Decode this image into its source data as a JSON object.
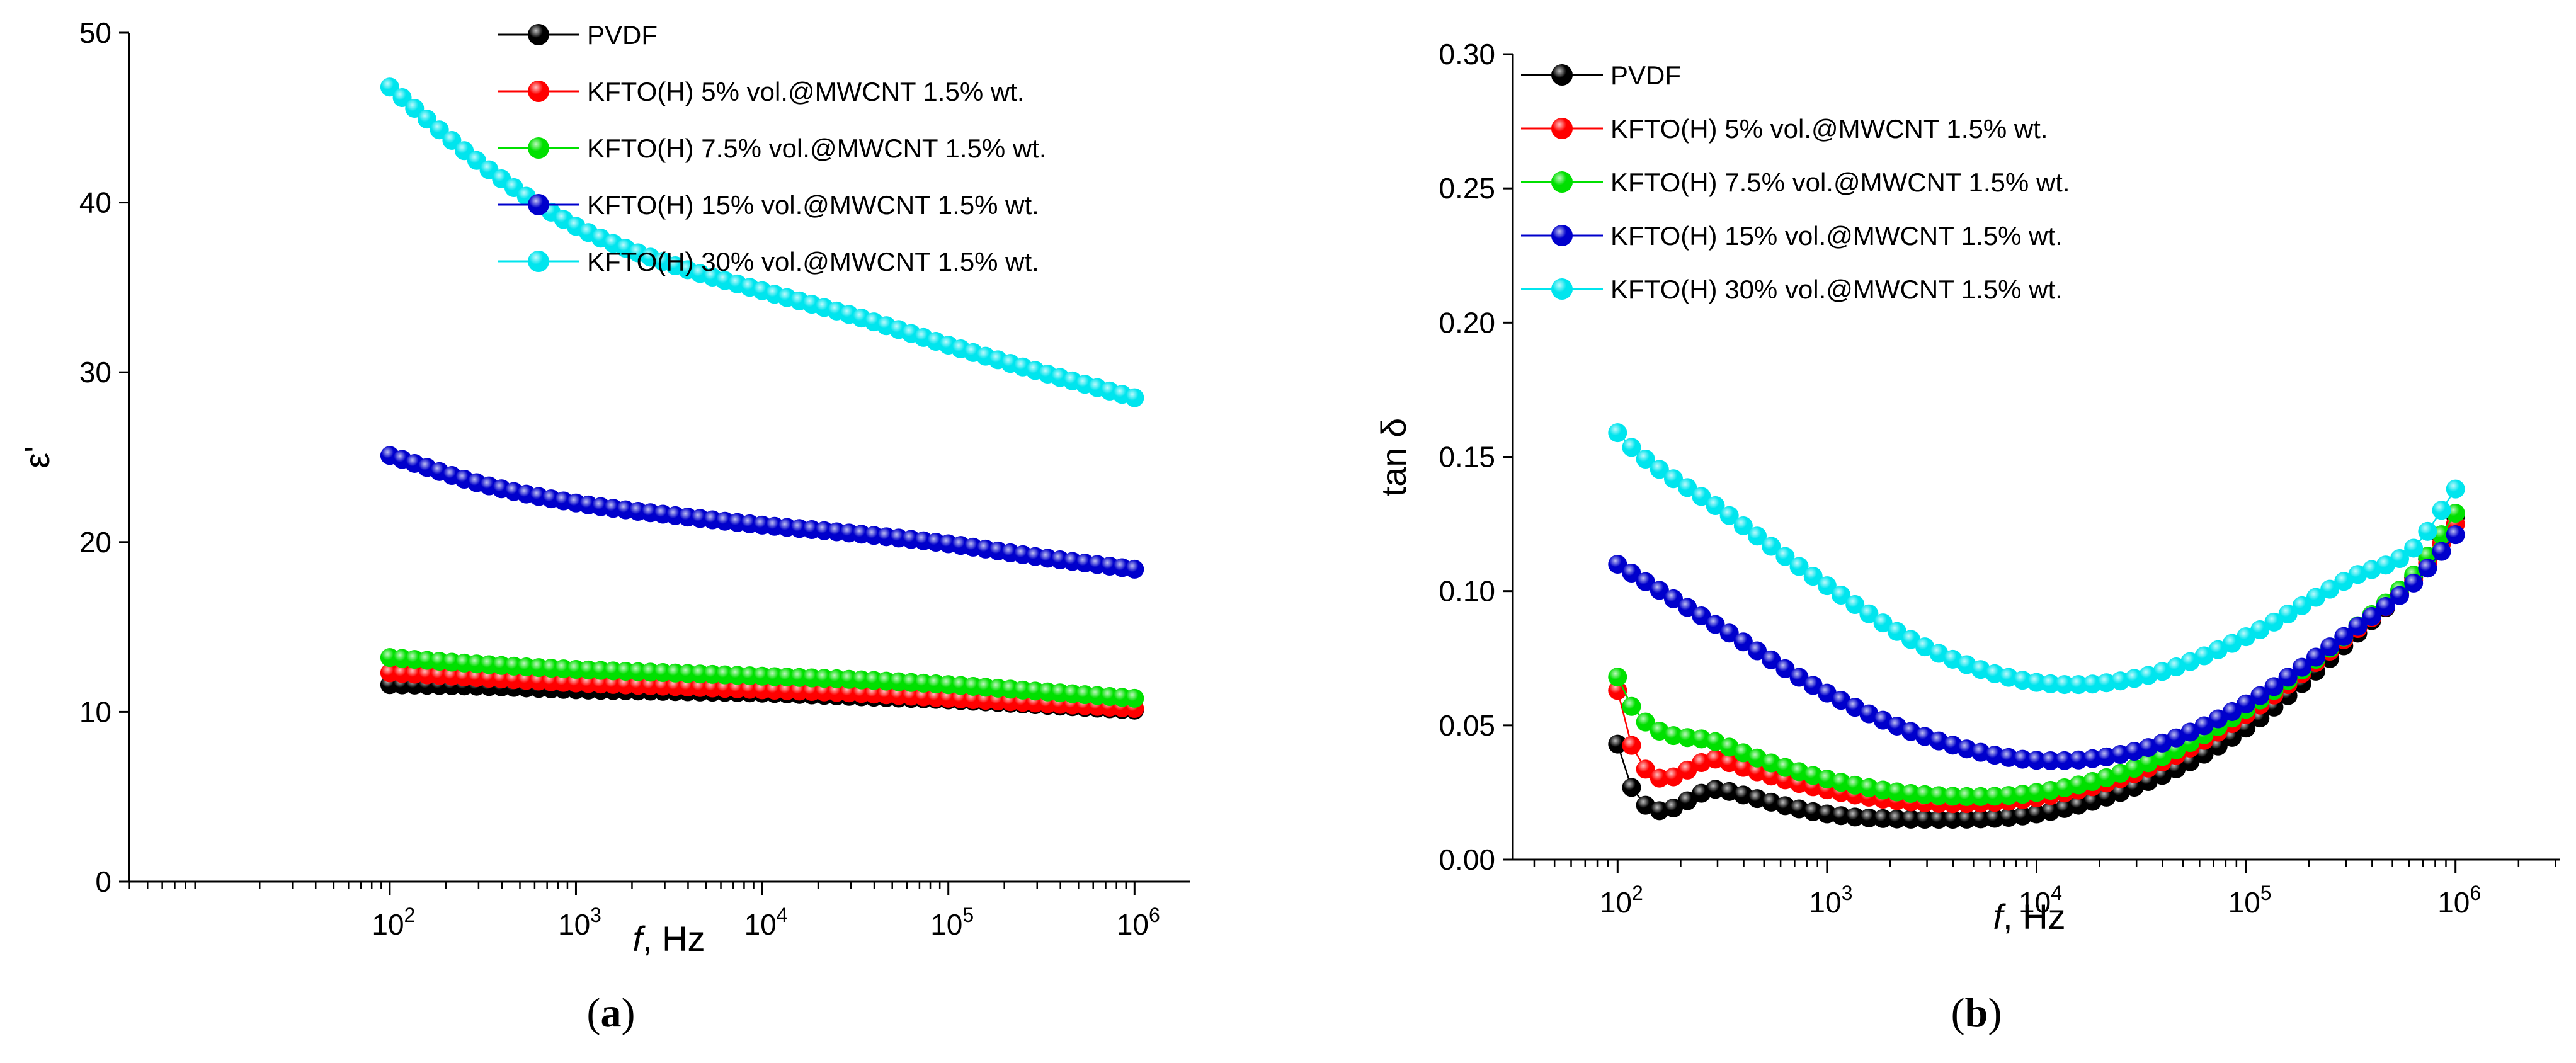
{
  "chart_data": [
    {
      "type": "scatter",
      "panel_label": "(a)",
      "panel_letter": "a",
      "ylabel": "ε'",
      "xlabel_var": "f",
      "xlabel_unit": ", Hz",
      "xscale": "log",
      "xlim": [
        0.6,
        6.3
      ],
      "ylim": [
        0,
        50
      ],
      "yticks": [
        0,
        10,
        20,
        30,
        40,
        50
      ],
      "ytick_labels": [
        "0",
        "10",
        "20",
        "30",
        "40",
        "50"
      ],
      "xticks_exp": [
        2,
        3,
        4,
        5,
        6
      ],
      "xtick_base": "10",
      "xtick_sups": [
        "2",
        "3",
        "4",
        "5",
        "6"
      ],
      "legend_position": "top-right",
      "series": [
        {
          "name": "PVDF",
          "color": "#000000",
          "points": [
            [
              2,
              11.6
            ],
            [
              2.5,
              11.5
            ],
            [
              3,
              11.3
            ],
            [
              3.5,
              11.2
            ],
            [
              4,
              11.1
            ],
            [
              4.5,
              10.9
            ],
            [
              5,
              10.7
            ],
            [
              5.5,
              10.4
            ],
            [
              6,
              10.1
            ]
          ]
        },
        {
          "name": "KFTO(H) 5% vol.@MWCNT 1.5% wt.",
          "color": "#ff0000",
          "points": [
            [
              2,
              12.3
            ],
            [
              2.5,
              12.0
            ],
            [
              3,
              11.7
            ],
            [
              3.5,
              11.5
            ],
            [
              4,
              11.3
            ],
            [
              4.5,
              11.1
            ],
            [
              5,
              10.8
            ],
            [
              5.5,
              10.5
            ],
            [
              6,
              10.2
            ]
          ]
        },
        {
          "name": "KFTO(H) 7.5% vol.@MWCNT 1.5% wt.",
          "color": "#00e000",
          "points": [
            [
              2,
              13.2
            ],
            [
              2.5,
              12.8
            ],
            [
              3,
              12.5
            ],
            [
              3.5,
              12.3
            ],
            [
              4,
              12.1
            ],
            [
              4.5,
              11.9
            ],
            [
              5,
              11.6
            ],
            [
              5.5,
              11.2
            ],
            [
              6,
              10.8
            ]
          ]
        },
        {
          "name": "KFTO(H) 15% vol.@MWCNT 1.5% wt.",
          "color": "#0000cc",
          "points": [
            [
              2,
              25.1
            ],
            [
              2.5,
              23.4
            ],
            [
              3,
              22.3
            ],
            [
              3.5,
              21.6
            ],
            [
              4,
              21.0
            ],
            [
              4.5,
              20.5
            ],
            [
              5,
              19.9
            ],
            [
              5.5,
              19.1
            ],
            [
              6,
              18.4
            ]
          ]
        },
        {
          "name": "KFTO(H) 30% vol.@MWCNT 1.5% wt.",
          "color": "#00e5ee",
          "points": [
            [
              2,
              46.8
            ],
            [
              2.5,
              42.2
            ],
            [
              3,
              38.6
            ],
            [
              3.5,
              36.4
            ],
            [
              4,
              34.8
            ],
            [
              4.5,
              33.3
            ],
            [
              5,
              31.6
            ],
            [
              5.5,
              30.0
            ],
            [
              6,
              28.5
            ]
          ]
        }
      ]
    },
    {
      "type": "scatter",
      "panel_label": "(b)",
      "panel_letter": "b",
      "ylabel": "tan δ",
      "xlabel_var": "f",
      "xlabel_unit": ", Hz",
      "xscale": "log",
      "xlim": [
        1.5,
        6.5
      ],
      "ylim": [
        0,
        0.3
      ],
      "yticks": [
        0,
        0.05,
        0.1,
        0.15,
        0.2,
        0.25,
        0.3
      ],
      "ytick_labels": [
        "0.00",
        "0.05",
        "0.10",
        "0.15",
        "0.20",
        "0.25",
        "0.30"
      ],
      "xticks_exp": [
        2,
        3,
        4,
        5,
        6
      ],
      "xtick_base": "10",
      "xtick_sups": [
        "2",
        "3",
        "4",
        "5",
        "6"
      ],
      "legend_position": "top-left",
      "series": [
        {
          "name": "PVDF",
          "color": "#000000",
          "points": [
            [
              2,
              0.043
            ],
            [
              2.02,
              0.035
            ],
            [
              2.5,
              0.026
            ],
            [
              3,
              0.017
            ],
            [
              3.5,
              0.015
            ],
            [
              4,
              0.017
            ],
            [
              4.5,
              0.028
            ],
            [
              5,
              0.049
            ],
            [
              5.5,
              0.082
            ],
            [
              5.8,
              0.105
            ],
            [
              6,
              0.128
            ]
          ]
        },
        {
          "name": "KFTO(H) 5% vol.@MWCNT 1.5% wt.",
          "color": "#ff0000",
          "points": [
            [
              2,
              0.063
            ],
            [
              2.02,
              0.053
            ],
            [
              2.5,
              0.037
            ],
            [
              3,
              0.026
            ],
            [
              3.5,
              0.021
            ],
            [
              4,
              0.023
            ],
            [
              4.5,
              0.033
            ],
            [
              5,
              0.054
            ],
            [
              5.5,
              0.084
            ],
            [
              5.8,
              0.104
            ],
            [
              6,
              0.125
            ]
          ]
        },
        {
          "name": "KFTO(H) 7.5% vol.@MWCNT 1.5% wt.",
          "color": "#00e000",
          "points": [
            [
              2,
              0.068
            ],
            [
              2.02,
              0.063
            ],
            [
              2.5,
              0.043
            ],
            [
              3,
              0.03
            ],
            [
              3.5,
              0.024
            ],
            [
              4,
              0.025
            ],
            [
              4.5,
              0.035
            ],
            [
              5,
              0.056
            ],
            [
              5.5,
              0.085
            ],
            [
              5.8,
              0.106
            ],
            [
              6,
              0.129
            ]
          ]
        },
        {
          "name": "KFTO(H) 15% vol.@MWCNT 1.5% wt.",
          "color": "#0000cc",
          "points": [
            [
              2,
              0.11
            ],
            [
              2.02,
              0.109
            ],
            [
              2.5,
              0.086
            ],
            [
              3,
              0.062
            ],
            [
              3.5,
              0.045
            ],
            [
              4,
              0.037
            ],
            [
              4.5,
              0.041
            ],
            [
              5,
              0.058
            ],
            [
              5.5,
              0.085
            ],
            [
              5.8,
              0.103
            ],
            [
              6,
              0.121
            ]
          ]
        },
        {
          "name": "KFTO(H) 30% vol.@MWCNT 1.5% wt.",
          "color": "#00e5ee",
          "points": [
            [
              2,
              0.159
            ],
            [
              2.02,
              0.157
            ],
            [
              2.5,
              0.13
            ],
            [
              3,
              0.102
            ],
            [
              3.5,
              0.078
            ],
            [
              4,
              0.066
            ],
            [
              4.5,
              0.068
            ],
            [
              5,
              0.083
            ],
            [
              5.5,
              0.105
            ],
            [
              5.8,
              0.116
            ],
            [
              6,
              0.138
            ]
          ]
        }
      ]
    }
  ]
}
